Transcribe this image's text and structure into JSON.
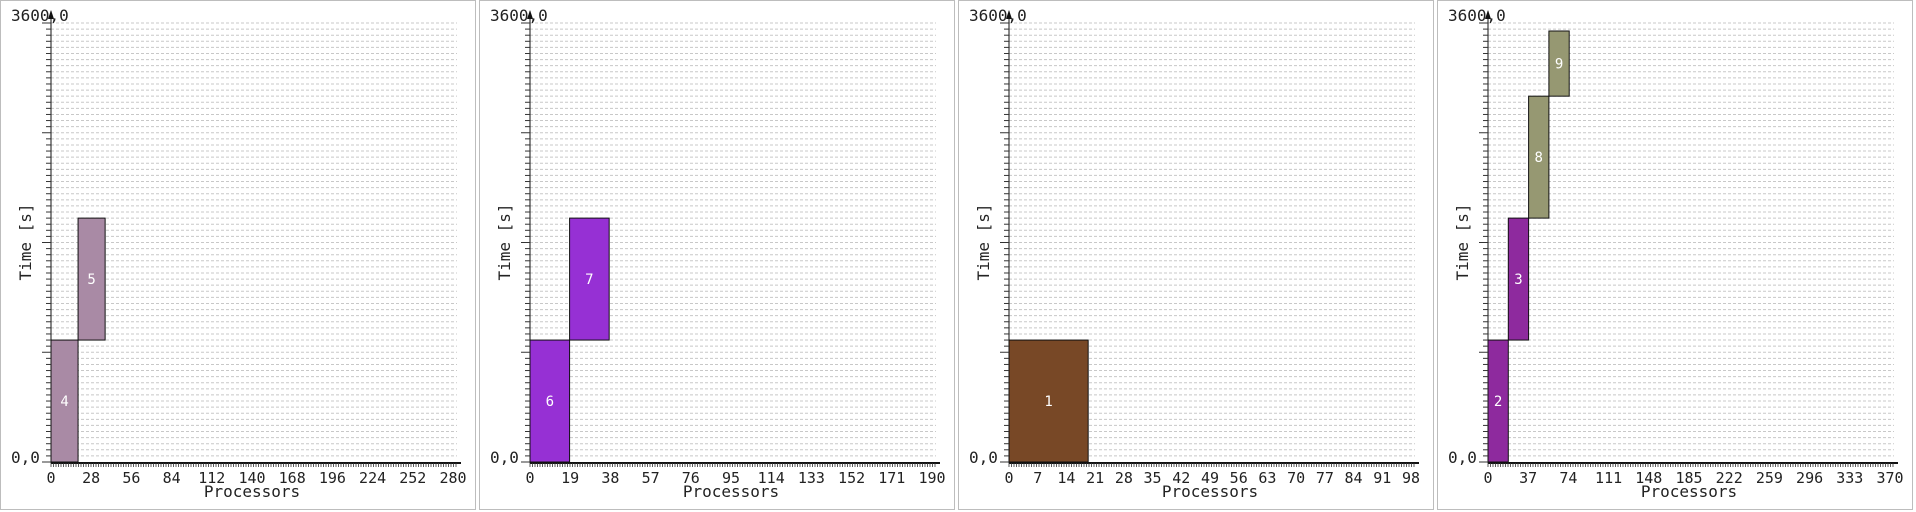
{
  "chart_data": [
    {
      "type": "bar",
      "ylabel": "Time [s]",
      "xlabel": "Processors",
      "y_top_label": "3600,0",
      "y_bottom_label": "0,0",
      "ylim": [
        0,
        3600
      ],
      "xlim": [
        0,
        300
      ],
      "grid": true,
      "xticks": [
        "0",
        "28",
        "56",
        "84",
        "112",
        "140",
        "168",
        "196",
        "224",
        "252",
        "280"
      ],
      "jobs": [
        {
          "id": "4",
          "x_start": 0,
          "x_end": 20,
          "y_start": 0,
          "y_end": 1000,
          "color": "#a98aa5"
        },
        {
          "id": "5",
          "x_start": 20,
          "x_end": 40,
          "y_start": 1000,
          "y_end": 2000,
          "color": "#a98aa5"
        }
      ]
    },
    {
      "type": "bar",
      "ylabel": "Time [s]",
      "xlabel": "Processors",
      "y_top_label": "3600,0",
      "y_bottom_label": "0,0",
      "ylim": [
        0,
        3600
      ],
      "xlim": [
        0,
        200
      ],
      "grid": true,
      "xticks": [
        "0",
        "19",
        "38",
        "57",
        "76",
        "95",
        "114",
        "133",
        "152",
        "171",
        "190"
      ],
      "jobs": [
        {
          "id": "6",
          "x_start": 0,
          "x_end": 19.5,
          "y_start": 0,
          "y_end": 1000,
          "color": "#9630d4"
        },
        {
          "id": "7",
          "x_start": 19.5,
          "x_end": 39,
          "y_start": 1000,
          "y_end": 2000,
          "color": "#9630d4"
        }
      ]
    },
    {
      "type": "bar",
      "ylabel": "Time [s]",
      "xlabel": "Processors",
      "y_top_label": "3600,0",
      "y_bottom_label": "0,0",
      "ylim": [
        0,
        3600
      ],
      "xlim": [
        0,
        100
      ],
      "grid": true,
      "xticks": [
        "0",
        "7",
        "14",
        "21",
        "28",
        "35",
        "42",
        "49",
        "56",
        "63",
        "70",
        "77",
        "84",
        "91",
        "98"
      ],
      "jobs": [
        {
          "id": "1",
          "x_start": 0,
          "x_end": 19.5,
          "y_start": 0,
          "y_end": 1000,
          "color": "#784826"
        }
      ]
    },
    {
      "type": "bar",
      "ylabel": "Time [s]",
      "xlabel": "Processors",
      "y_top_label": "3600,0",
      "y_bottom_label": "0,0",
      "ylim": [
        0,
        3600
      ],
      "xlim": [
        0,
        400
      ],
      "grid": true,
      "xticks": [
        "0",
        "37",
        "74",
        "111",
        "148",
        "185",
        "222",
        "259",
        "296",
        "333",
        "370"
      ],
      "jobs": [
        {
          "id": "2",
          "x_start": 0,
          "x_end": 20,
          "y_start": 0,
          "y_end": 1000,
          "color": "#8e2a9e"
        },
        {
          "id": "3",
          "x_start": 20,
          "x_end": 40,
          "y_start": 1000,
          "y_end": 2000,
          "color": "#8e2a9e"
        },
        {
          "id": "8",
          "x_start": 40,
          "x_end": 60,
          "y_start": 2000,
          "y_end": 3000,
          "color": "#969872"
        },
        {
          "id": "9",
          "x_start": 60,
          "x_end": 80,
          "y_start": 3000,
          "y_end": 3900,
          "color": "#969872"
        }
      ]
    }
  ]
}
